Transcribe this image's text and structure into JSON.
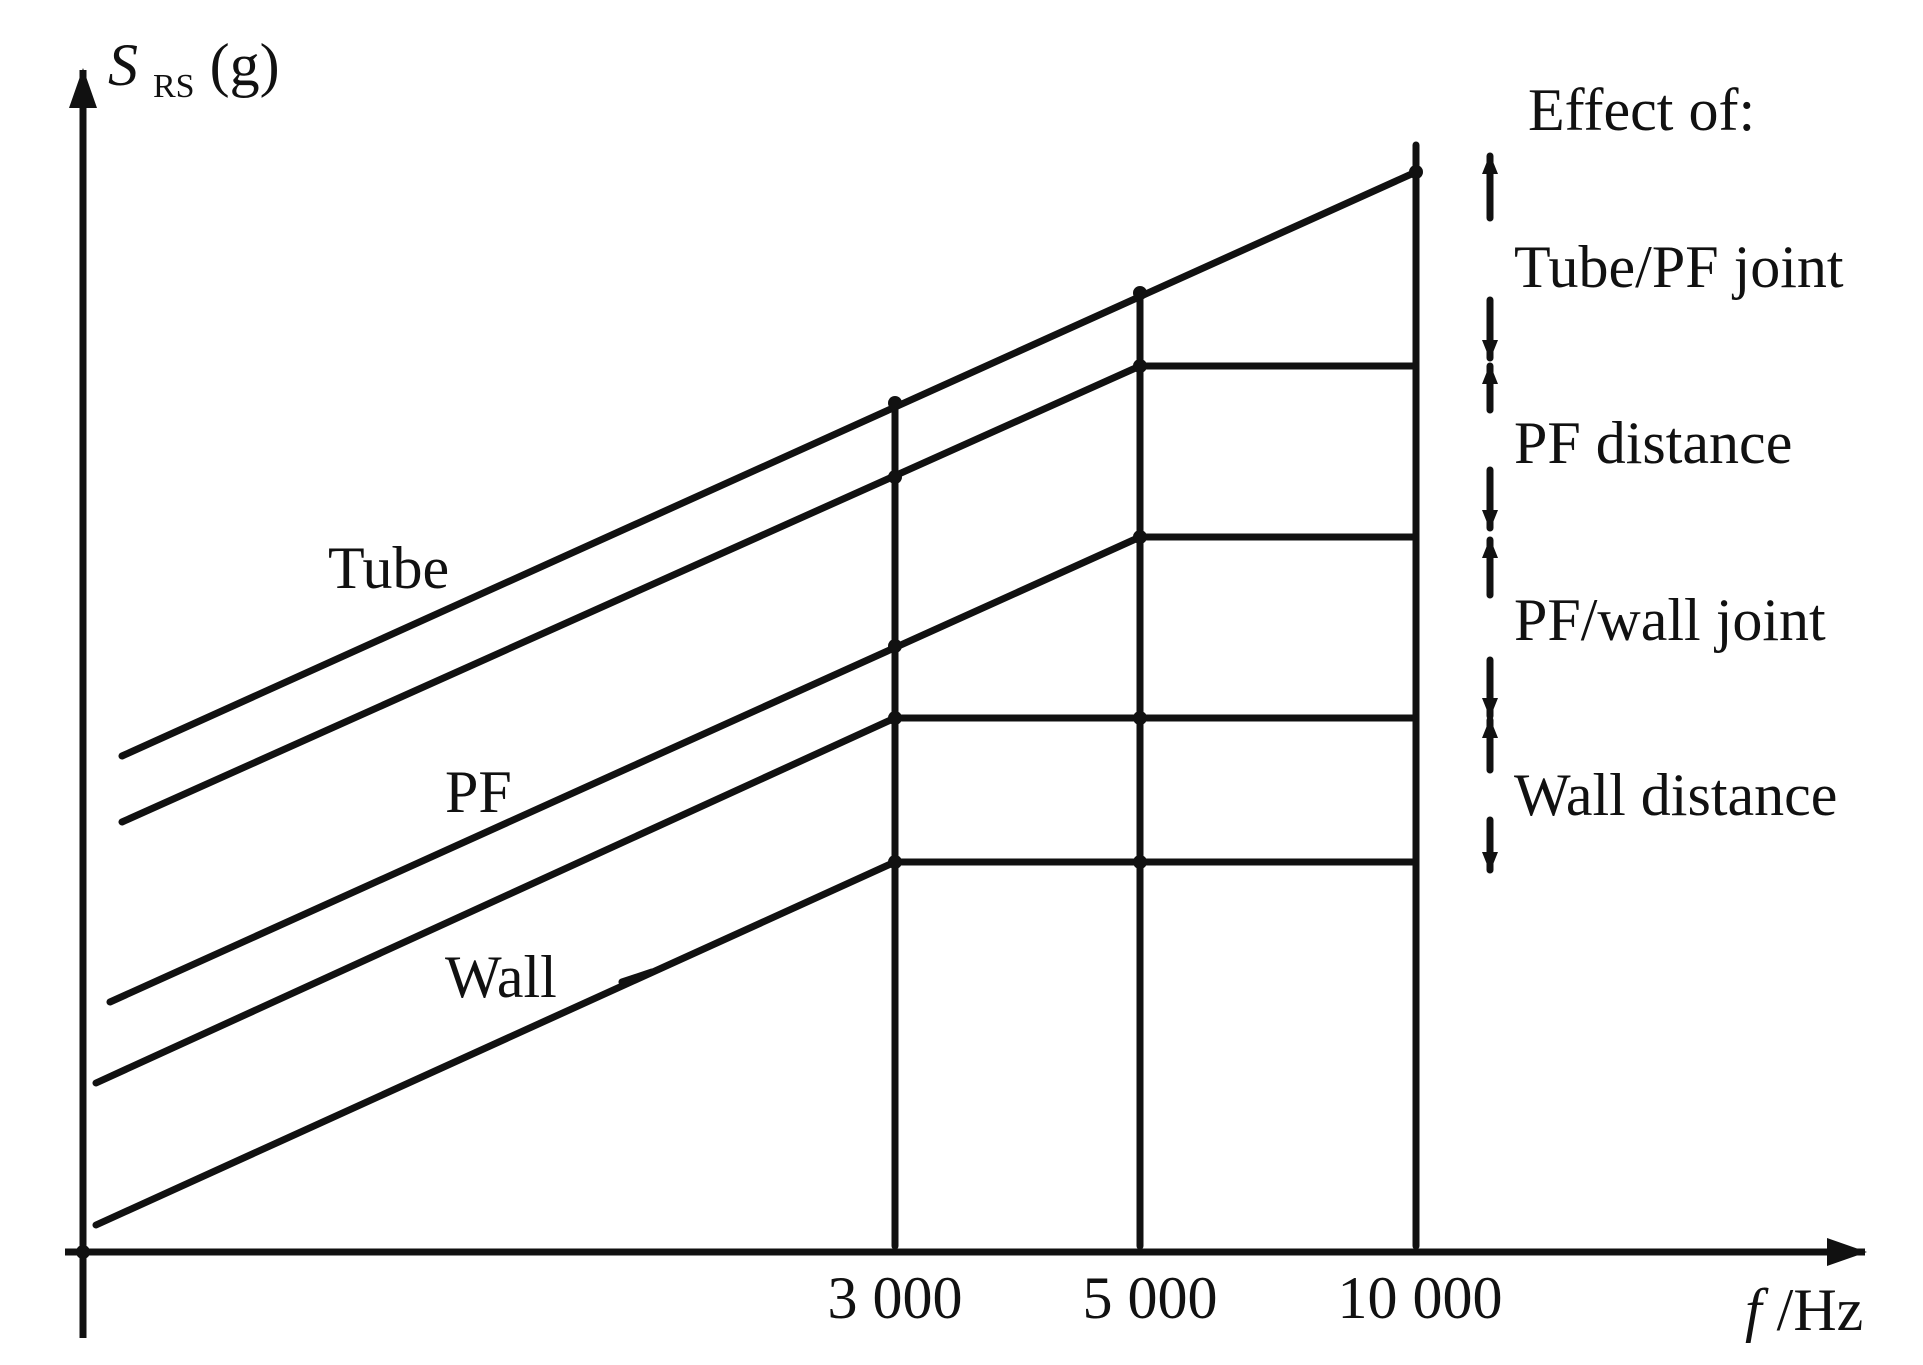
{
  "axis": {
    "y_symbol": "S",
    "y_subscript": "RS",
    "y_unit": "(g)",
    "x_symbol": "f",
    "x_unit": "/Hz"
  },
  "ticks": [
    "3 000",
    "5 000",
    "10 000"
  ],
  "curve_labels": {
    "tube": "Tube",
    "pf": "PF",
    "wall": "Wall"
  },
  "legend": {
    "title": "Effect of:",
    "items": [
      "Tube/PF joint",
      "PF distance",
      "PF/wall joint",
      "Wall distance"
    ]
  },
  "colors": {
    "ink": "#111111",
    "background": "#ffffff"
  }
}
